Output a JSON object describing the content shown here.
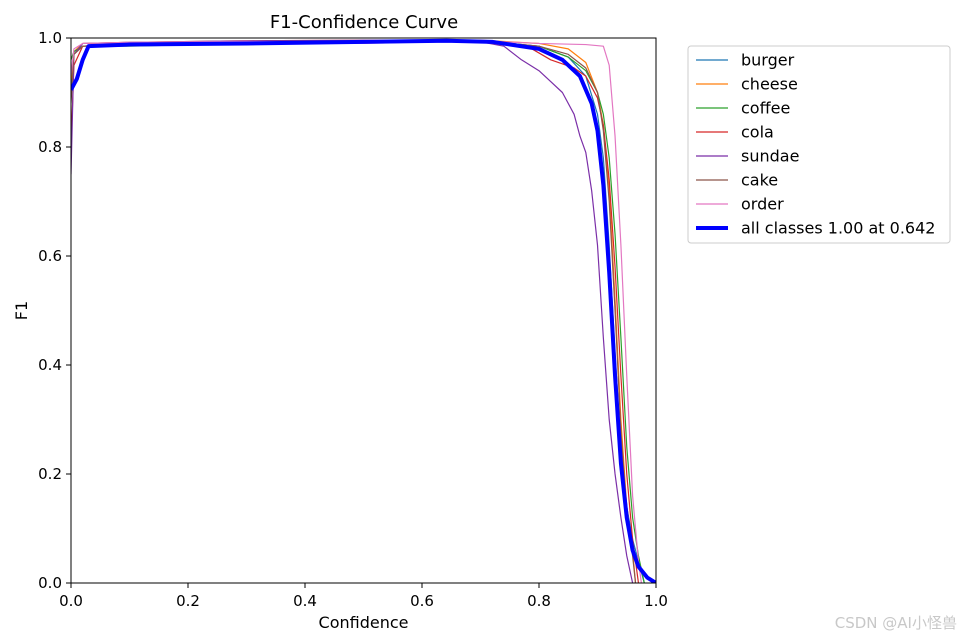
{
  "chart_data": {
    "type": "line",
    "title": "F1-Confidence Curve",
    "xlabel": "Confidence",
    "ylabel": "F1",
    "xlim": [
      0,
      1
    ],
    "ylim": [
      0,
      1
    ],
    "xticks": [
      "0.0",
      "0.2",
      "0.4",
      "0.6",
      "0.8",
      "1.0"
    ],
    "yticks": [
      "0.0",
      "0.2",
      "0.4",
      "0.6",
      "0.8",
      "1.0"
    ],
    "grid": false,
    "legend_position": "outside-right",
    "series": [
      {
        "name": "burger",
        "color": "#1f77b4",
        "width": 1.2,
        "points": [
          [
            0,
            0.9
          ],
          [
            0.005,
            0.97
          ],
          [
            0.02,
            0.985
          ],
          [
            0.1,
            0.99
          ],
          [
            0.3,
            0.993
          ],
          [
            0.5,
            0.995
          ],
          [
            0.7,
            0.995
          ],
          [
            0.8,
            0.985
          ],
          [
            0.85,
            0.965
          ],
          [
            0.88,
            0.93
          ],
          [
            0.9,
            0.86
          ],
          [
            0.91,
            0.78
          ],
          [
            0.92,
            0.62
          ],
          [
            0.93,
            0.42
          ],
          [
            0.94,
            0.25
          ],
          [
            0.95,
            0.14
          ],
          [
            0.96,
            0.08
          ],
          [
            0.97,
            0.04
          ],
          [
            0.98,
            0.0
          ]
        ]
      },
      {
        "name": "cheese",
        "color": "#ff7f0e",
        "width": 1.2,
        "points": [
          [
            0,
            0.92
          ],
          [
            0.005,
            0.975
          ],
          [
            0.02,
            0.99
          ],
          [
            0.1,
            0.992
          ],
          [
            0.3,
            0.995
          ],
          [
            0.5,
            0.996
          ],
          [
            0.7,
            0.996
          ],
          [
            0.8,
            0.99
          ],
          [
            0.85,
            0.98
          ],
          [
            0.88,
            0.955
          ],
          [
            0.9,
            0.9
          ],
          [
            0.91,
            0.84
          ],
          [
            0.92,
            0.72
          ],
          [
            0.93,
            0.52
          ],
          [
            0.94,
            0.3
          ],
          [
            0.95,
            0.14
          ],
          [
            0.96,
            0.06
          ],
          [
            0.965,
            0.0
          ]
        ]
      },
      {
        "name": "coffee",
        "color": "#2ca02c",
        "width": 1.2,
        "points": [
          [
            0,
            0.96
          ],
          [
            0.005,
            0.975
          ],
          [
            0.02,
            0.985
          ],
          [
            0.1,
            0.985
          ],
          [
            0.3,
            0.99
          ],
          [
            0.5,
            0.993
          ],
          [
            0.7,
            0.995
          ],
          [
            0.8,
            0.985
          ],
          [
            0.85,
            0.965
          ],
          [
            0.88,
            0.94
          ],
          [
            0.9,
            0.9
          ],
          [
            0.91,
            0.86
          ],
          [
            0.92,
            0.78
          ],
          [
            0.93,
            0.64
          ],
          [
            0.94,
            0.45
          ],
          [
            0.95,
            0.25
          ],
          [
            0.96,
            0.12
          ],
          [
            0.97,
            0.05
          ],
          [
            0.98,
            0.0
          ]
        ]
      },
      {
        "name": "cola",
        "color": "#d62728",
        "width": 1.2,
        "points": [
          [
            0,
            0.8
          ],
          [
            0.005,
            0.95
          ],
          [
            0.02,
            0.985
          ],
          [
            0.1,
            0.99
          ],
          [
            0.3,
            0.993
          ],
          [
            0.5,
            0.995
          ],
          [
            0.7,
            0.995
          ],
          [
            0.78,
            0.985
          ],
          [
            0.82,
            0.96
          ],
          [
            0.86,
            0.945
          ],
          [
            0.88,
            0.93
          ],
          [
            0.9,
            0.89
          ],
          [
            0.91,
            0.84
          ],
          [
            0.92,
            0.74
          ],
          [
            0.93,
            0.58
          ],
          [
            0.94,
            0.38
          ],
          [
            0.95,
            0.2
          ],
          [
            0.96,
            0.08
          ],
          [
            0.97,
            0.0
          ]
        ]
      },
      {
        "name": "sundae",
        "color": "#7b2fa8",
        "width": 1.2,
        "points": [
          [
            0,
            0.75
          ],
          [
            0.005,
            0.97
          ],
          [
            0.02,
            0.99
          ],
          [
            0.1,
            0.992
          ],
          [
            0.3,
            0.995
          ],
          [
            0.5,
            0.996
          ],
          [
            0.7,
            0.993
          ],
          [
            0.74,
            0.985
          ],
          [
            0.77,
            0.96
          ],
          [
            0.8,
            0.94
          ],
          [
            0.82,
            0.92
          ],
          [
            0.84,
            0.9
          ],
          [
            0.86,
            0.86
          ],
          [
            0.87,
            0.82
          ],
          [
            0.88,
            0.79
          ],
          [
            0.89,
            0.72
          ],
          [
            0.9,
            0.62
          ],
          [
            0.91,
            0.45
          ],
          [
            0.92,
            0.3
          ],
          [
            0.93,
            0.2
          ],
          [
            0.94,
            0.12
          ],
          [
            0.95,
            0.05
          ],
          [
            0.96,
            0.0
          ]
        ]
      },
      {
        "name": "cake",
        "color": "#8c564b",
        "width": 1.2,
        "points": [
          [
            0,
            0.88
          ],
          [
            0.005,
            0.97
          ],
          [
            0.02,
            0.985
          ],
          [
            0.1,
            0.99
          ],
          [
            0.3,
            0.993
          ],
          [
            0.5,
            0.995
          ],
          [
            0.7,
            0.995
          ],
          [
            0.8,
            0.985
          ],
          [
            0.85,
            0.97
          ],
          [
            0.88,
            0.945
          ],
          [
            0.9,
            0.9
          ],
          [
            0.91,
            0.83
          ],
          [
            0.92,
            0.7
          ],
          [
            0.93,
            0.5
          ],
          [
            0.94,
            0.28
          ],
          [
            0.95,
            0.13
          ],
          [
            0.96,
            0.05
          ],
          [
            0.965,
            0.0
          ]
        ]
      },
      {
        "name": "order",
        "color": "#e377c2",
        "width": 1.2,
        "points": [
          [
            0,
            0.93
          ],
          [
            0.005,
            0.98
          ],
          [
            0.02,
            0.99
          ],
          [
            0.1,
            0.992
          ],
          [
            0.3,
            0.994
          ],
          [
            0.5,
            0.99
          ],
          [
            0.6,
            0.993
          ],
          [
            0.7,
            0.995
          ],
          [
            0.8,
            0.99
          ],
          [
            0.88,
            0.988
          ],
          [
            0.91,
            0.985
          ],
          [
            0.92,
            0.95
          ],
          [
            0.93,
            0.82
          ],
          [
            0.94,
            0.62
          ],
          [
            0.95,
            0.38
          ],
          [
            0.96,
            0.16
          ],
          [
            0.97,
            0.04
          ],
          [
            0.975,
            0.0
          ]
        ]
      },
      {
        "name": "all classes 1.00 at 0.642",
        "color": "#0000ff",
        "width": 4,
        "points": [
          [
            0,
            0.905
          ],
          [
            0.01,
            0.925
          ],
          [
            0.02,
            0.96
          ],
          [
            0.03,
            0.985
          ],
          [
            0.1,
            0.988
          ],
          [
            0.3,
            0.99
          ],
          [
            0.5,
            0.993
          ],
          [
            0.642,
            0.995
          ],
          [
            0.72,
            0.993
          ],
          [
            0.8,
            0.98
          ],
          [
            0.84,
            0.96
          ],
          [
            0.87,
            0.93
          ],
          [
            0.89,
            0.88
          ],
          [
            0.9,
            0.83
          ],
          [
            0.91,
            0.73
          ],
          [
            0.92,
            0.57
          ],
          [
            0.93,
            0.38
          ],
          [
            0.94,
            0.22
          ],
          [
            0.95,
            0.12
          ],
          [
            0.96,
            0.06
          ],
          [
            0.97,
            0.03
          ],
          [
            0.985,
            0.01
          ],
          [
            1.0,
            0.0
          ]
        ]
      }
    ]
  },
  "watermark": "CSDN @AI小怪兽"
}
